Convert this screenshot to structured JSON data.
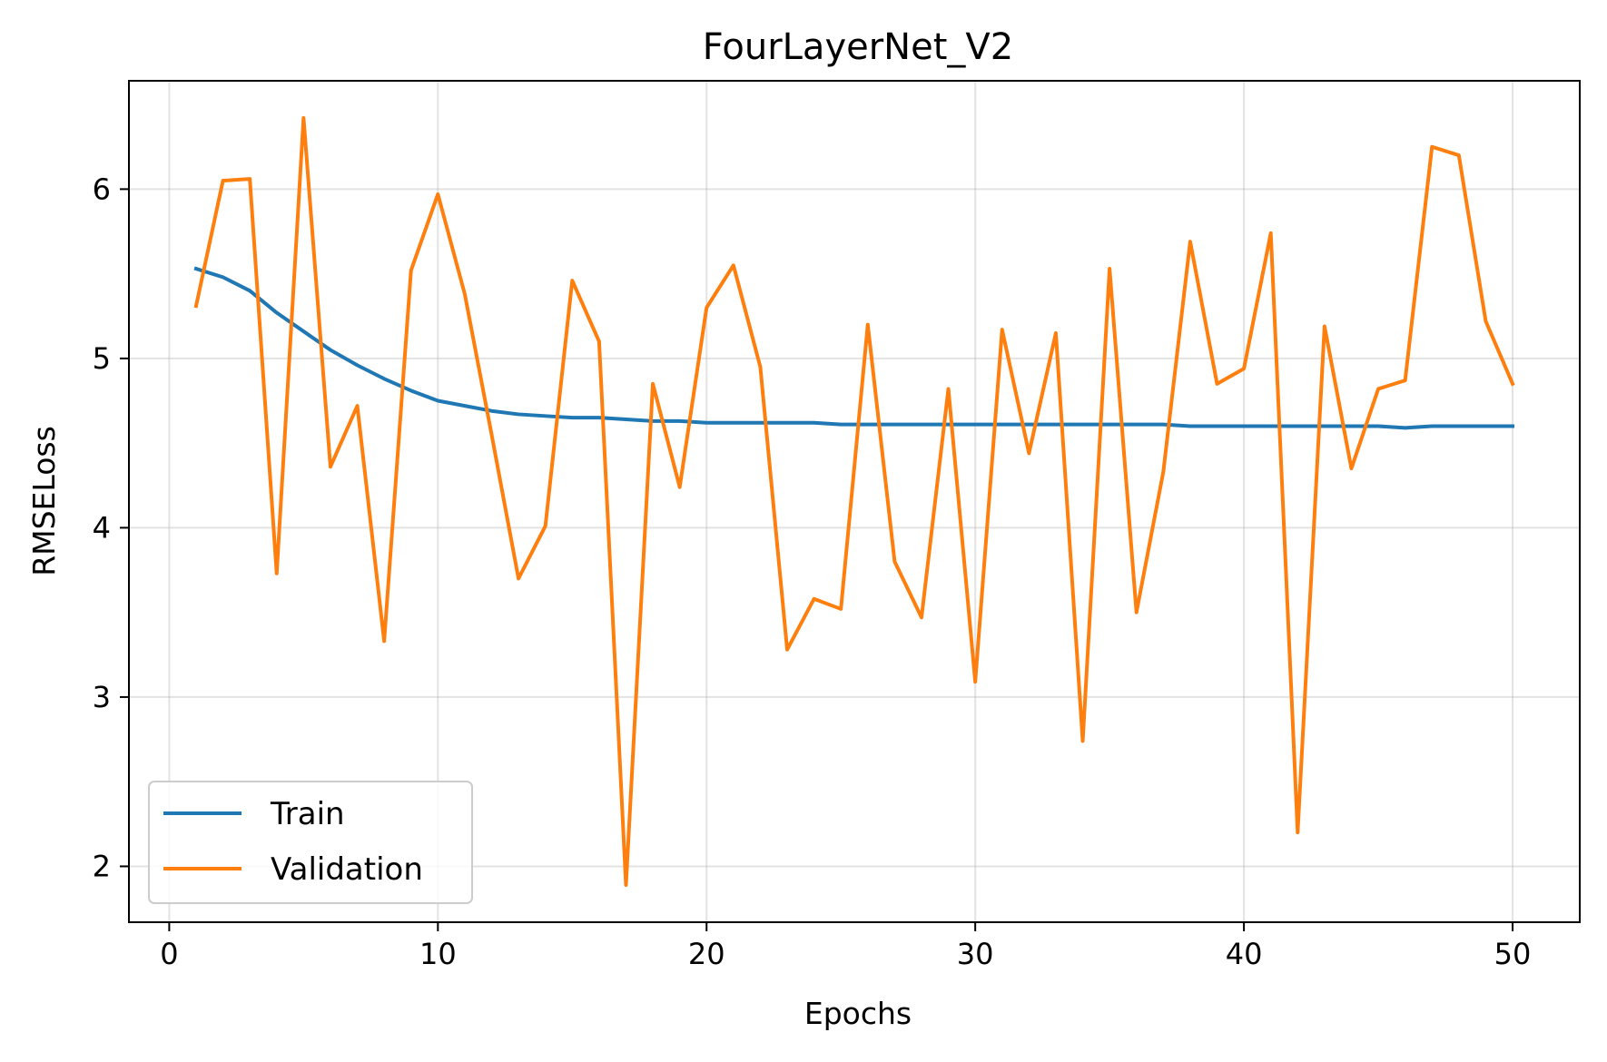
{
  "chart_data": {
    "type": "line",
    "title": "FourLayerNet_V2",
    "xlabel": "Epochs",
    "ylabel": "RMSELoss",
    "xlim": [
      -1.5,
      52.5
    ],
    "ylim": [
      1.67,
      6.64
    ],
    "xticks": [
      0,
      10,
      20,
      30,
      40,
      50
    ],
    "yticks": [
      2,
      3,
      4,
      5,
      6
    ],
    "grid": true,
    "legend_position": "lower-left",
    "x": [
      1,
      2,
      3,
      4,
      5,
      6,
      7,
      8,
      9,
      10,
      11,
      12,
      13,
      14,
      15,
      16,
      17,
      18,
      19,
      20,
      21,
      22,
      23,
      24,
      25,
      26,
      27,
      28,
      29,
      30,
      31,
      32,
      33,
      34,
      35,
      36,
      37,
      38,
      39,
      40,
      41,
      42,
      43,
      44,
      45,
      46,
      47,
      48,
      49,
      50
    ],
    "series": [
      {
        "name": "Train",
        "color": "#1f77b4",
        "values": [
          5.53,
          5.48,
          5.4,
          5.27,
          5.16,
          5.05,
          4.96,
          4.88,
          4.81,
          4.75,
          4.72,
          4.69,
          4.67,
          4.66,
          4.65,
          4.65,
          4.64,
          4.63,
          4.63,
          4.62,
          4.62,
          4.62,
          4.62,
          4.62,
          4.61,
          4.61,
          4.61,
          4.61,
          4.61,
          4.61,
          4.61,
          4.61,
          4.61,
          4.61,
          4.61,
          4.61,
          4.61,
          4.6,
          4.6,
          4.6,
          4.6,
          4.6,
          4.6,
          4.6,
          4.6,
          4.59,
          4.6,
          4.6,
          4.6,
          4.6
        ]
      },
      {
        "name": "Validation",
        "color": "#ff7f0e",
        "values": [
          5.31,
          6.05,
          6.06,
          3.73,
          6.42,
          4.36,
          4.72,
          3.33,
          5.52,
          5.97,
          5.38,
          4.55,
          3.7,
          4.01,
          5.46,
          5.1,
          1.89,
          4.85,
          4.24,
          5.3,
          5.55,
          4.95,
          3.28,
          3.58,
          3.52,
          5.2,
          3.8,
          3.47,
          4.82,
          3.09,
          5.17,
          4.44,
          5.15,
          2.74,
          5.53,
          3.5,
          4.33,
          5.69,
          4.85,
          4.94,
          5.74,
          2.2,
          5.19,
          4.35,
          4.82,
          4.87,
          6.25,
          6.2,
          5.22,
          4.85
        ]
      }
    ]
  }
}
